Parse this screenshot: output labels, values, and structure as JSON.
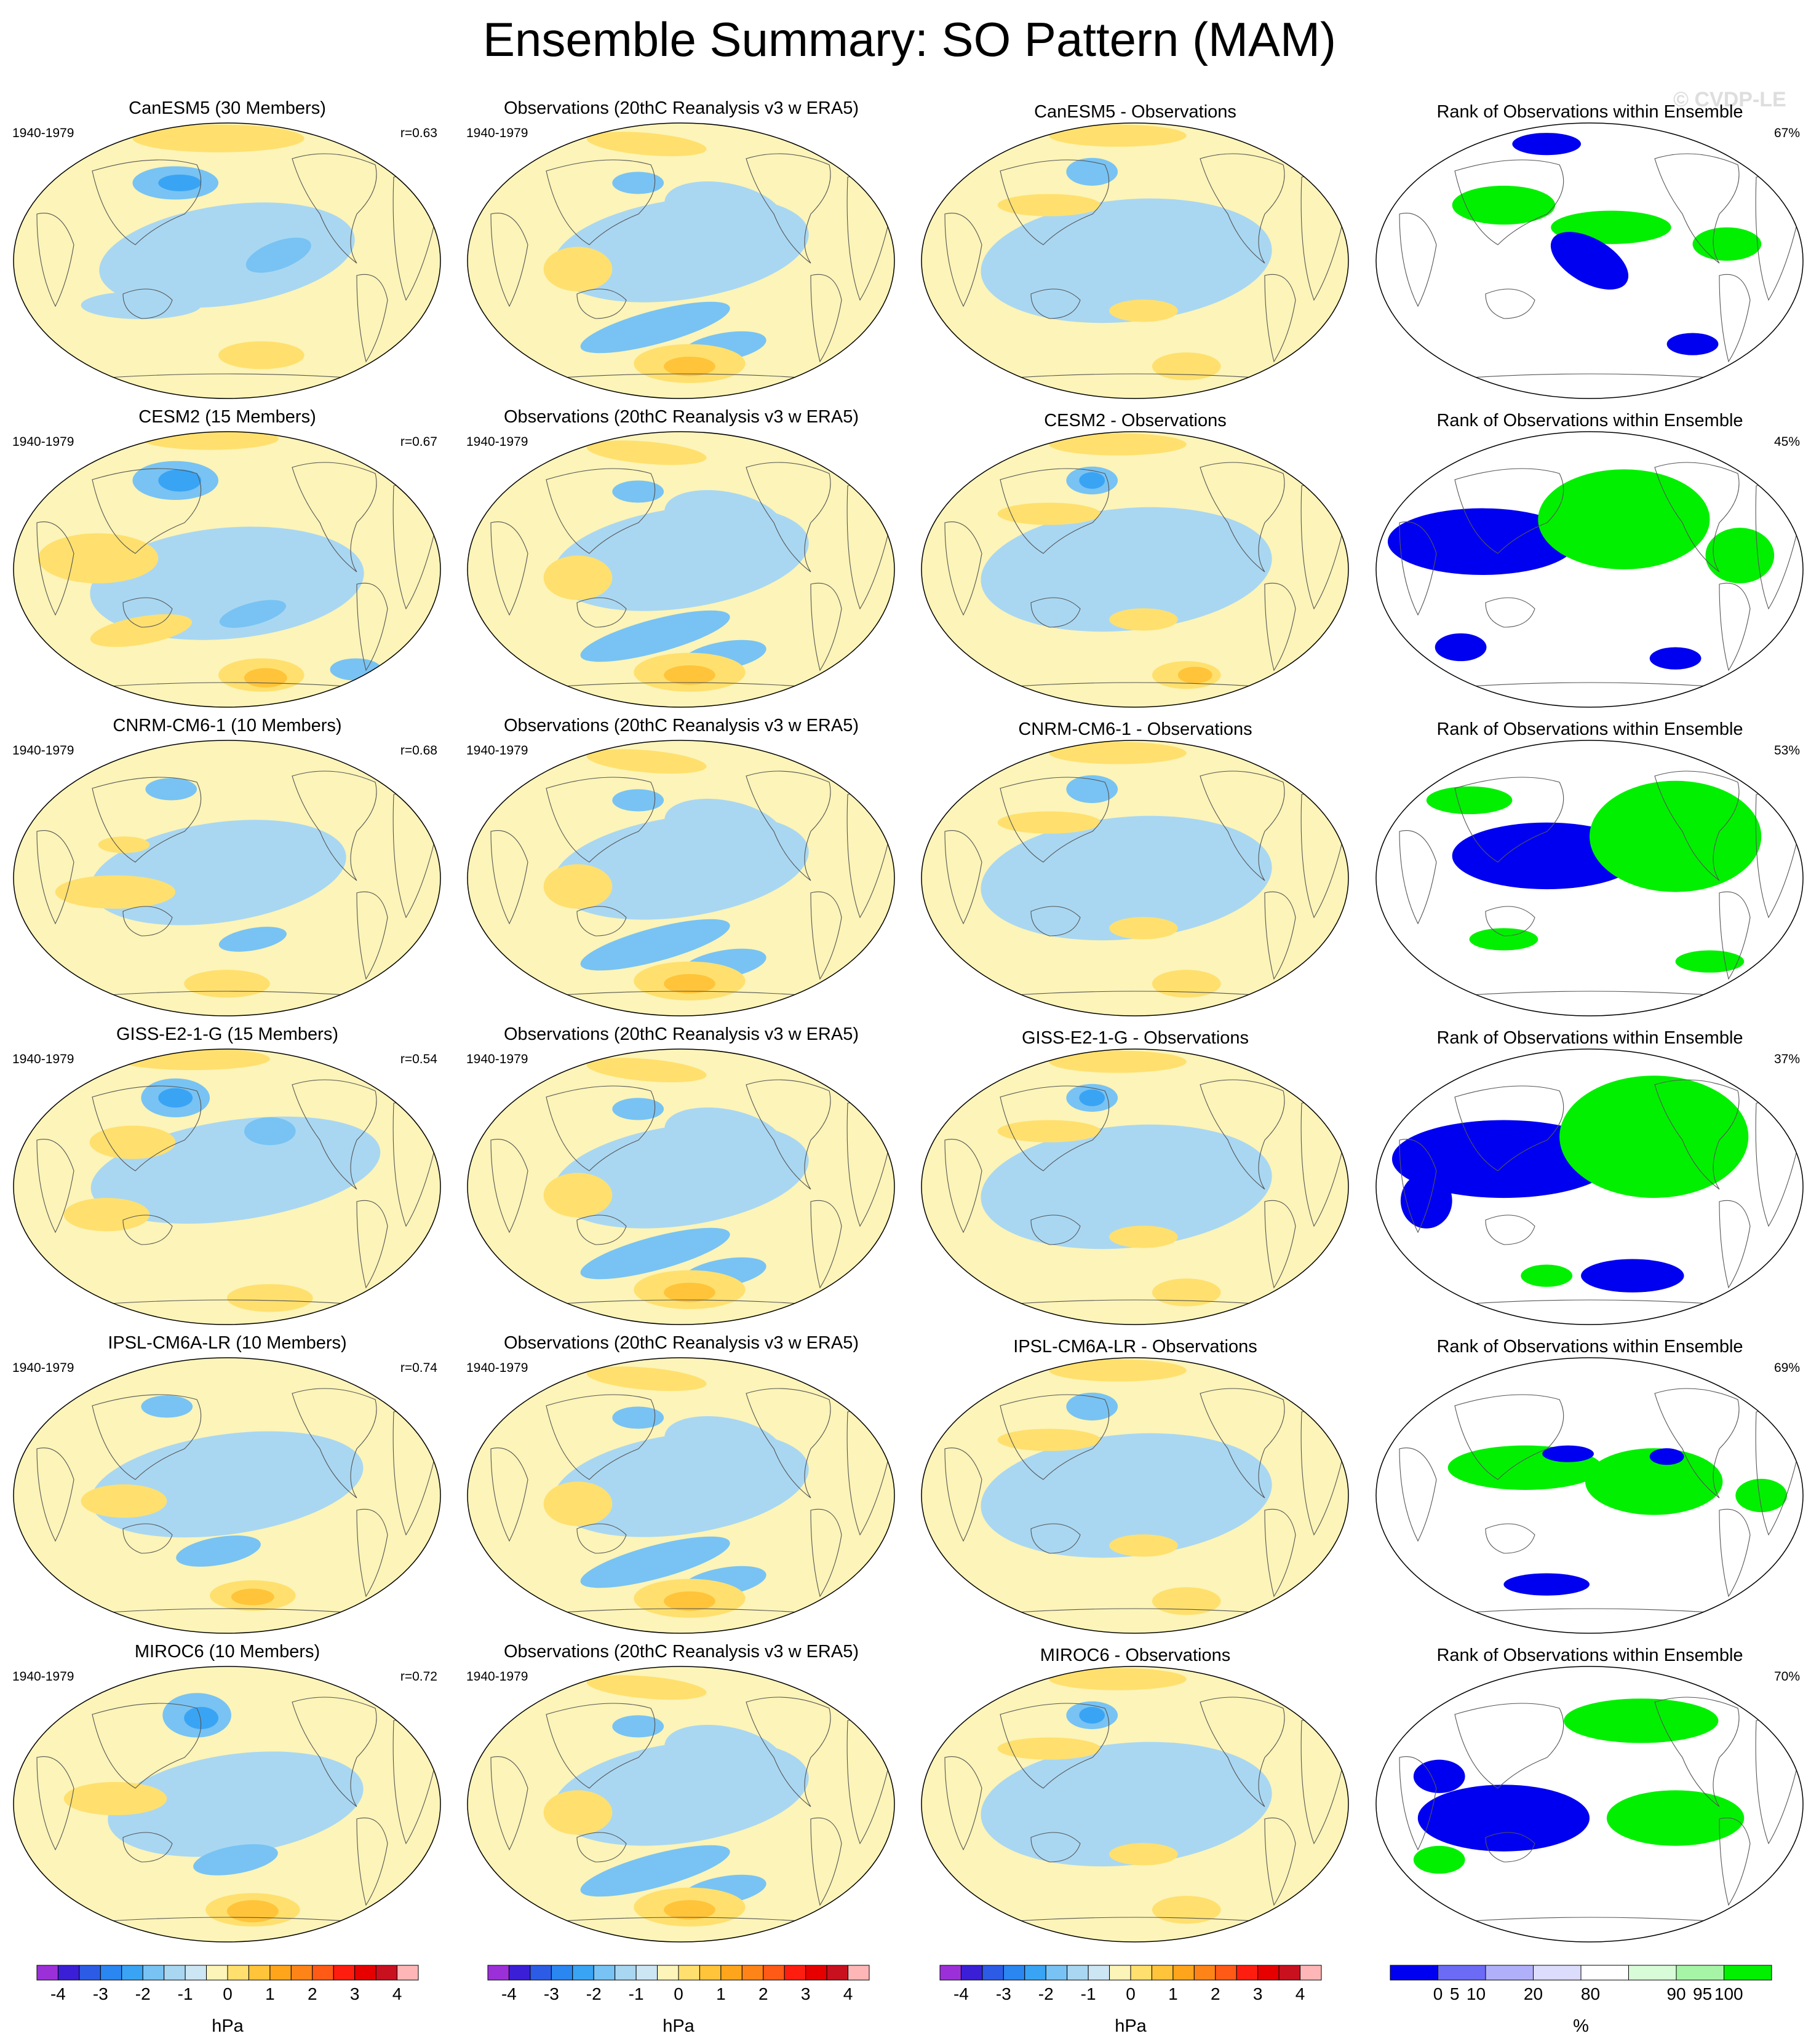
{
  "title": "Ensemble Summary: SO Pattern (MAM)",
  "watermark": "© CVDP-LE",
  "period": "1940-1979",
  "obs_title": "Observations (20thC Reanalysis v3 w ERA5)",
  "rank_title": "Rank of Observations within Ensemble",
  "rows": [
    {
      "model_title": "CanESM5 (30 Members)",
      "r": "r=0.63",
      "diff_title": "CanESM5 - Observations",
      "rank_pct": "67%"
    },
    {
      "model_title": "CESM2 (15 Members)",
      "r": "r=0.67",
      "diff_title": "CESM2 - Observations",
      "rank_pct": "45%"
    },
    {
      "model_title": "CNRM-CM6-1 (10 Members)",
      "r": "r=0.68",
      "diff_title": "CNRM-CM6-1 - Observations",
      "rank_pct": "53%"
    },
    {
      "model_title": "GISS-E2-1-G (15 Members)",
      "r": "r=0.54",
      "diff_title": "GISS-E2-1-G - Observations",
      "rank_pct": "37%"
    },
    {
      "model_title": "IPSL-CM6A-LR (10 Members)",
      "r": "r=0.74",
      "diff_title": "IPSL-CM6A-LR - Observations",
      "rank_pct": "69%"
    },
    {
      "model_title": "MIROC6 (10 Members)",
      "r": "r=0.72",
      "diff_title": "MIROC6 - Observations",
      "rank_pct": "70%"
    }
  ],
  "chart_data": {
    "type": "heatmap",
    "title": "Ensemble Summary: SO Pattern (MAM)",
    "projection": "Robinson (global, Pacific-centered)",
    "pattern_colorbar": {
      "unit": "hPa",
      "ticks": [
        "-4",
        "-3",
        "-2",
        "-1",
        "0",
        "1",
        "2",
        "3",
        "4"
      ],
      "colors": [
        "#9b30d9",
        "#3a1fd6",
        "#2c5ce6",
        "#2a86f0",
        "#3aa4f4",
        "#78c3f3",
        "#a9d7f2",
        "#cce6f4",
        "#fcf4b8",
        "#ffe06e",
        "#ffc43a",
        "#ffa51c",
        "#ff8418",
        "#ff5a16",
        "#ff1d0f",
        "#e60000",
        "#c8101e",
        "#ffb6b6"
      ]
    },
    "rank_colorbar": {
      "unit": "%",
      "ticks": [
        "0",
        "5",
        "10",
        "20",
        "80",
        "90",
        "95",
        "100"
      ],
      "colors": [
        "#0000f0",
        "#6b6bf6",
        "#b0b0fa",
        "#dcdcfc",
        "#ffffff",
        "#d8fbd8",
        "#a6f5a6",
        "#00f000"
      ]
    },
    "pattern_correlations": [
      {
        "model": "CanESM5",
        "r": 0.63
      },
      {
        "model": "CESM2",
        "r": 0.67
      },
      {
        "model": "CNRM-CM6-1",
        "r": 0.68
      },
      {
        "model": "GISS-E2-1-G",
        "r": 0.54
      },
      {
        "model": "IPSL-CM6A-LR",
        "r": 0.74
      },
      {
        "model": "MIROC6",
        "r": 0.72
      }
    ],
    "rank_percent": [
      {
        "model": "CanESM5",
        "value": 67
      },
      {
        "model": "CESM2",
        "value": 45
      },
      {
        "model": "CNRM-CM6-1",
        "value": 53
      },
      {
        "model": "GISS-E2-1-G",
        "value": 37
      },
      {
        "model": "IPSL-CM6A-LR",
        "value": 69
      },
      {
        "model": "MIROC6",
        "value": 70
      }
    ]
  }
}
